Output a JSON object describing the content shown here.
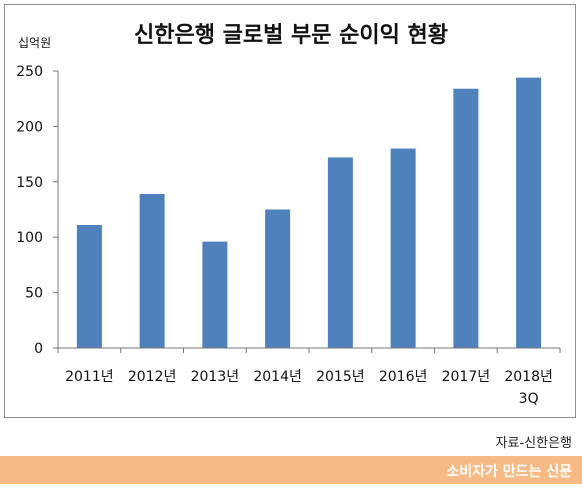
{
  "source_text": "자료-신한은행",
  "footer_text": "소비자가 만드는 신문",
  "colors": {
    "bar": "#4f81bd",
    "footer": "#f7ba85",
    "axis": "#777777"
  },
  "chart_data": {
    "type": "bar",
    "title": "신한은행 글로벌 부문 순이익 현황",
    "ylabel": "십억원",
    "xlabel": "",
    "categories": [
      "2011년",
      "2012년",
      "2013년",
      "2014년",
      "2015년",
      "2016년",
      "2017년",
      "2018년 3Q"
    ],
    "values": [
      111,
      139,
      96,
      125,
      172,
      180,
      234,
      244
    ],
    "ylim": [
      0,
      250
    ],
    "yticks": [
      0,
      50,
      100,
      150,
      200,
      250
    ],
    "grid": false,
    "legend": "none"
  }
}
